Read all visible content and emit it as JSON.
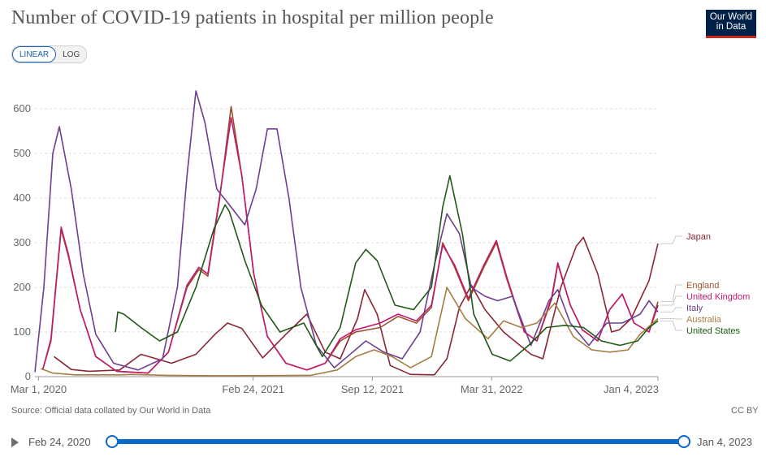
{
  "title": "Number of COVID-19 patients in hospital per million people",
  "logo": {
    "line1": "Our World",
    "line2": "in Data",
    "bg": "#002147",
    "accent": "#ce261e"
  },
  "scale_toggle": {
    "linear": "LINEAR",
    "log": "LOG",
    "active": "linear"
  },
  "source": "Source: Official data collated by Our World in Data",
  "license": "CC BY",
  "timeline": {
    "start": "Feb 24, 2020",
    "end": "Jan 4, 2023",
    "play_icon": "play-icon"
  },
  "chart_data": {
    "type": "line",
    "title": "Number of COVID-19 patients in hospital per million people",
    "x_range": [
      "2020-02-24",
      "2023-01-04"
    ],
    "x_ticks": [
      {
        "date": "2020-03-01",
        "label": "Mar 1, 2020"
      },
      {
        "date": "2021-02-24",
        "label": "Feb 24, 2021"
      },
      {
        "date": "2021-09-12",
        "label": "Sep 12, 2021"
      },
      {
        "date": "2022-03-31",
        "label": "Mar 31, 2022"
      },
      {
        "date": "2023-01-04",
        "label": "Jan 4, 2023"
      }
    ],
    "ylim": [
      0,
      680
    ],
    "y_ticks": [
      0,
      100,
      200,
      300,
      400,
      500,
      600
    ],
    "grid": "horizontal dashed",
    "legend": "right, line ends",
    "series": [
      {
        "name": "Japan",
        "color": "#8b2635",
        "points": [
          [
            "2020-03-27",
            45
          ],
          [
            "2020-04-25",
            16
          ],
          [
            "2020-05-25",
            12
          ],
          [
            "2020-07-15",
            15
          ],
          [
            "2020-08-20",
            50
          ],
          [
            "2020-10-10",
            30
          ],
          [
            "2020-11-20",
            50
          ],
          [
            "2020-12-22",
            95
          ],
          [
            "2021-01-12",
            120
          ],
          [
            "2021-02-05",
            108
          ],
          [
            "2021-03-12",
            42
          ],
          [
            "2021-04-20",
            95
          ],
          [
            "2021-05-25",
            140
          ],
          [
            "2021-06-25",
            55
          ],
          [
            "2021-07-20",
            40
          ],
          [
            "2021-08-18",
            130
          ],
          [
            "2021-08-30",
            195
          ],
          [
            "2021-09-20",
            140
          ],
          [
            "2021-10-12",
            25
          ],
          [
            "2021-11-15",
            5
          ],
          [
            "2021-12-25",
            4
          ],
          [
            "2022-01-15",
            40
          ],
          [
            "2022-02-05",
            155
          ],
          [
            "2022-02-25",
            205
          ],
          [
            "2022-03-20",
            150
          ],
          [
            "2022-04-20",
            100
          ],
          [
            "2022-06-05",
            50
          ],
          [
            "2022-06-25",
            40
          ],
          [
            "2022-07-25",
            200
          ],
          [
            "2022-08-20",
            292
          ],
          [
            "2022-09-01",
            312
          ],
          [
            "2022-09-25",
            230
          ],
          [
            "2022-10-18",
            100
          ],
          [
            "2022-10-31",
            105
          ],
          [
            "2022-11-20",
            130
          ],
          [
            "2022-12-20",
            215
          ],
          [
            "2023-01-04",
            298
          ]
        ]
      },
      {
        "name": "England",
        "color": "#9a5129",
        "points": [
          [
            "2020-03-08",
            15
          ],
          [
            "2020-03-22",
            80
          ],
          [
            "2020-04-08",
            330
          ],
          [
            "2020-04-20",
            270
          ],
          [
            "2020-05-10",
            150
          ],
          [
            "2020-06-05",
            45
          ],
          [
            "2020-07-10",
            12
          ],
          [
            "2020-09-01",
            8
          ],
          [
            "2020-10-05",
            55
          ],
          [
            "2020-11-05",
            200
          ],
          [
            "2020-11-25",
            240
          ],
          [
            "2020-12-10",
            225
          ],
          [
            "2020-12-30",
            400
          ],
          [
            "2021-01-18",
            605
          ],
          [
            "2021-02-05",
            450
          ],
          [
            "2021-02-25",
            230
          ],
          [
            "2021-03-20",
            90
          ],
          [
            "2021-04-20",
            30
          ],
          [
            "2021-05-25",
            15
          ],
          [
            "2021-06-25",
            30
          ],
          [
            "2021-07-20",
            80
          ],
          [
            "2021-08-15",
            100
          ],
          [
            "2021-09-25",
            110
          ],
          [
            "2021-10-25",
            135
          ],
          [
            "2021-11-25",
            120
          ],
          [
            "2021-12-20",
            155
          ],
          [
            "2022-01-08",
            300
          ],
          [
            "2022-01-28",
            245
          ],
          [
            "2022-02-20",
            170
          ],
          [
            "2022-03-18",
            245
          ],
          [
            "2022-04-08",
            300
          ],
          [
            "2022-04-25",
            220
          ],
          [
            "2022-05-25",
            100
          ],
          [
            "2022-06-15",
            80
          ],
          [
            "2022-07-10",
            175
          ],
          [
            "2022-07-20",
            252
          ],
          [
            "2022-08-10",
            160
          ],
          [
            "2022-08-30",
            105
          ],
          [
            "2022-09-25",
            80
          ],
          [
            "2022-10-15",
            150
          ],
          [
            "2022-11-05",
            185
          ],
          [
            "2022-11-25",
            120
          ],
          [
            "2022-12-20",
            100
          ],
          [
            "2023-01-04",
            168
          ]
        ]
      },
      {
        "name": "United Kingdom",
        "color": "#c0196e",
        "points": [
          [
            "2020-03-08",
            15
          ],
          [
            "2020-03-22",
            85
          ],
          [
            "2020-04-08",
            335
          ],
          [
            "2020-04-20",
            275
          ],
          [
            "2020-05-10",
            150
          ],
          [
            "2020-06-05",
            45
          ],
          [
            "2020-07-10",
            12
          ],
          [
            "2020-09-01",
            8
          ],
          [
            "2020-10-05",
            55
          ],
          [
            "2020-11-05",
            205
          ],
          [
            "2020-11-25",
            245
          ],
          [
            "2020-12-10",
            230
          ],
          [
            "2020-12-30",
            405
          ],
          [
            "2021-01-18",
            580
          ],
          [
            "2021-02-05",
            450
          ],
          [
            "2021-02-25",
            230
          ],
          [
            "2021-03-20",
            90
          ],
          [
            "2021-04-20",
            30
          ],
          [
            "2021-05-25",
            15
          ],
          [
            "2021-06-25",
            30
          ],
          [
            "2021-07-20",
            85
          ],
          [
            "2021-08-15",
            105
          ],
          [
            "2021-09-25",
            120
          ],
          [
            "2021-10-25",
            140
          ],
          [
            "2021-11-25",
            125
          ],
          [
            "2021-12-20",
            160
          ],
          [
            "2022-01-08",
            295
          ],
          [
            "2022-01-28",
            250
          ],
          [
            "2022-02-20",
            175
          ],
          [
            "2022-03-18",
            250
          ],
          [
            "2022-04-08",
            305
          ],
          [
            "2022-04-25",
            225
          ],
          [
            "2022-05-25",
            100
          ],
          [
            "2022-06-15",
            80
          ],
          [
            "2022-07-10",
            180
          ],
          [
            "2022-07-20",
            255
          ],
          [
            "2022-08-10",
            160
          ],
          [
            "2022-08-30",
            105
          ],
          [
            "2022-09-25",
            80
          ],
          [
            "2022-10-15",
            150
          ],
          [
            "2022-11-05",
            185
          ],
          [
            "2022-11-25",
            120
          ],
          [
            "2022-12-20",
            100
          ],
          [
            "2023-01-04",
            160
          ]
        ]
      },
      {
        "name": "Italy",
        "color": "#6d3e91",
        "points": [
          [
            "2020-02-24",
            10
          ],
          [
            "2020-03-10",
            200
          ],
          [
            "2020-03-25",
            500
          ],
          [
            "2020-04-05",
            560
          ],
          [
            "2020-04-25",
            420
          ],
          [
            "2020-05-15",
            230
          ],
          [
            "2020-06-05",
            95
          ],
          [
            "2020-07-05",
            30
          ],
          [
            "2020-08-15",
            15
          ],
          [
            "2020-09-25",
            40
          ],
          [
            "2020-10-20",
            200
          ],
          [
            "2020-11-05",
            450
          ],
          [
            "2020-11-20",
            640
          ],
          [
            "2020-12-05",
            570
          ],
          [
            "2020-12-25",
            420
          ],
          [
            "2021-01-15",
            385
          ],
          [
            "2021-02-10",
            340
          ],
          [
            "2021-03-01",
            420
          ],
          [
            "2021-03-20",
            555
          ],
          [
            "2021-04-05",
            555
          ],
          [
            "2021-04-25",
            400
          ],
          [
            "2021-05-15",
            200
          ],
          [
            "2021-06-10",
            70
          ],
          [
            "2021-07-10",
            20
          ],
          [
            "2021-08-10",
            55
          ],
          [
            "2021-09-01",
            80
          ],
          [
            "2021-10-01",
            55
          ],
          [
            "2021-11-01",
            40
          ],
          [
            "2021-12-01",
            100
          ],
          [
            "2021-12-25",
            250
          ],
          [
            "2022-01-15",
            365
          ],
          [
            "2022-02-05",
            320
          ],
          [
            "2022-02-25",
            200
          ],
          [
            "2022-03-20",
            180
          ],
          [
            "2022-04-10",
            170
          ],
          [
            "2022-05-05",
            180
          ],
          [
            "2022-06-05",
            70
          ],
          [
            "2022-07-05",
            170
          ],
          [
            "2022-07-20",
            195
          ],
          [
            "2022-08-10",
            120
          ],
          [
            "2022-09-10",
            70
          ],
          [
            "2022-10-10",
            120
          ],
          [
            "2022-11-05",
            120
          ],
          [
            "2022-12-05",
            140
          ],
          [
            "2022-12-20",
            170
          ],
          [
            "2023-01-04",
            145
          ]
        ]
      },
      {
        "name": "Australia",
        "color": "#a77c44",
        "points": [
          [
            "2020-03-05",
            18
          ],
          [
            "2020-03-25",
            8
          ],
          [
            "2020-05-01",
            4
          ],
          [
            "2020-07-15",
            4
          ],
          [
            "2020-08-05",
            5
          ],
          [
            "2020-10-01",
            3
          ],
          [
            "2021-01-01",
            2
          ],
          [
            "2021-06-01",
            3
          ],
          [
            "2021-07-15",
            15
          ],
          [
            "2021-08-15",
            45
          ],
          [
            "2021-09-15",
            60
          ],
          [
            "2021-10-15",
            45
          ],
          [
            "2021-11-15",
            20
          ],
          [
            "2021-12-20",
            45
          ],
          [
            "2022-01-15",
            200
          ],
          [
            "2022-02-15",
            130
          ],
          [
            "2022-03-25",
            85
          ],
          [
            "2022-04-20",
            125
          ],
          [
            "2022-05-20",
            110
          ],
          [
            "2022-06-15",
            120
          ],
          [
            "2022-07-15",
            165
          ],
          [
            "2022-08-15",
            90
          ],
          [
            "2022-09-15",
            60
          ],
          [
            "2022-10-15",
            55
          ],
          [
            "2022-11-15",
            60
          ],
          [
            "2022-12-05",
            95
          ],
          [
            "2023-01-04",
            130
          ]
        ]
      },
      {
        "name": "United States",
        "color": "#1f5a16",
        "points": [
          [
            "2020-07-08",
            100
          ],
          [
            "2020-07-12",
            145
          ],
          [
            "2020-07-22",
            140
          ],
          [
            "2020-08-20",
            110
          ],
          [
            "2020-09-20",
            80
          ],
          [
            "2020-10-20",
            100
          ],
          [
            "2020-11-20",
            200
          ],
          [
            "2020-12-20",
            330
          ],
          [
            "2021-01-08",
            385
          ],
          [
            "2021-01-15",
            370
          ],
          [
            "2021-02-10",
            260
          ],
          [
            "2021-03-10",
            160
          ],
          [
            "2021-04-10",
            100
          ],
          [
            "2021-05-20",
            120
          ],
          [
            "2021-06-20",
            45
          ],
          [
            "2021-07-20",
            110
          ],
          [
            "2021-08-15",
            255
          ],
          [
            "2021-09-01",
            285
          ],
          [
            "2021-09-20",
            260
          ],
          [
            "2021-10-20",
            160
          ],
          [
            "2021-11-20",
            150
          ],
          [
            "2021-12-20",
            200
          ],
          [
            "2022-01-08",
            380
          ],
          [
            "2022-01-20",
            450
          ],
          [
            "2022-02-10",
            320
          ],
          [
            "2022-03-01",
            140
          ],
          [
            "2022-04-01",
            50
          ],
          [
            "2022-05-01",
            35
          ],
          [
            "2022-06-01",
            70
          ],
          [
            "2022-07-01",
            110
          ],
          [
            "2022-08-01",
            115
          ],
          [
            "2022-09-01",
            110
          ],
          [
            "2022-10-01",
            80
          ],
          [
            "2022-11-01",
            70
          ],
          [
            "2022-12-01",
            80
          ],
          [
            "2022-12-20",
            110
          ],
          [
            "2023-01-04",
            125
          ]
        ]
      }
    ]
  }
}
